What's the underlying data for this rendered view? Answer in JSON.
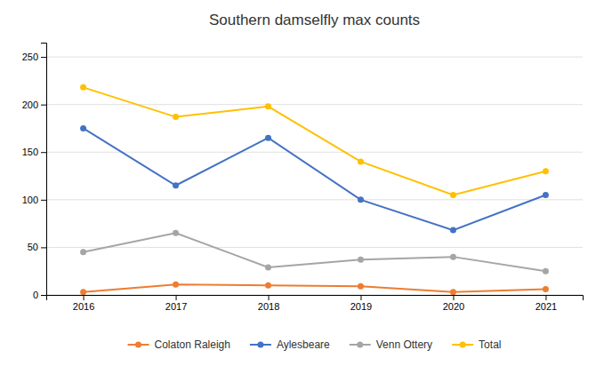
{
  "chart_data": {
    "type": "line",
    "title": "Southern damselfly max counts",
    "x": [
      2016,
      2017,
      2018,
      2019,
      2020,
      2021
    ],
    "series": [
      {
        "name": "Colaton Raleigh",
        "color": "#ED7D31",
        "marker": "circle",
        "values": [
          3,
          11,
          10,
          9,
          3,
          6
        ]
      },
      {
        "name": "Aylesbeare",
        "color": "#4472C4",
        "marker": "circle",
        "values": [
          175,
          115,
          165,
          100,
          68,
          105
        ]
      },
      {
        "name": "Venn Ottery",
        "color": "#A5A5A5",
        "marker": "circle",
        "values": [
          45,
          65,
          29,
          37,
          40,
          25
        ]
      },
      {
        "name": "Total",
        "color": "#FFC000",
        "marker": "circle",
        "values": [
          218,
          187,
          198,
          140,
          105,
          130
        ]
      }
    ],
    "xlim": [
      2015.6,
      2021.4
    ],
    "xticks": [
      2016,
      2017,
      2018,
      2019,
      2020,
      2021
    ],
    "ylim": [
      0,
      265
    ],
    "yticks": [
      0,
      50,
      100,
      150,
      200,
      250
    ],
    "grid": true,
    "legend": "bottom"
  }
}
